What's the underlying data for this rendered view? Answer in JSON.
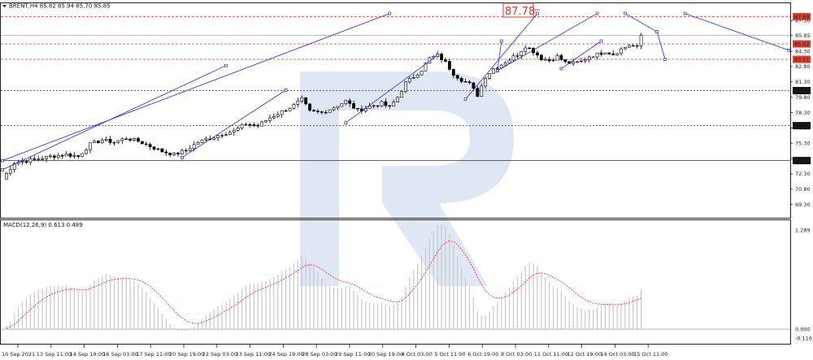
{
  "chart_data": {
    "type": "candlestick",
    "symbol_header": "BRENT,H4  85.82 85.94 85.70 85.85",
    "macd_header": "MACD(12,26,9) 0.613 0.489",
    "big_label": "87.78",
    "price_axis": {
      "range": [
        68.0,
        89.0
      ],
      "ticks": [
        "87.30",
        "85.85",
        "84.30",
        "82.80",
        "81.30",
        "79.80",
        "78.30",
        "76.80",
        "75.30",
        "73.80",
        "72.30",
        "70.80",
        "69.30"
      ],
      "highlighted": [
        {
          "text": "87.69",
          "kind": "red"
        },
        {
          "text": "85.02",
          "kind": "red"
        },
        {
          "text": "83.51",
          "kind": "red"
        },
        {
          "text": "80.45",
          "kind": "black"
        },
        {
          "text": "77.02",
          "kind": "black"
        },
        {
          "text": "73.60",
          "kind": "black"
        }
      ]
    },
    "macd_axis": {
      "ticks": [
        "1.289",
        "0.000",
        "-0.116"
      ]
    },
    "time_labels": [
      "10 Sep 2021",
      "13 Sep 11:00",
      "14 Sep 19:00",
      "16 Sep 03:00",
      "17 Sep 11:00",
      "20 Sep 19:00",
      "22 Sep 03:00",
      "23 Sep 11:00",
      "24 Sep 19:00",
      "28 Sep 03:00",
      "29 Sep 11:00",
      "30 Sep 19:00",
      "4 Oct 03:00",
      "5 Oct 11:00",
      "6 Oct 19:00",
      "8 Oct 03:00",
      "11 Oct 11:00",
      "12 Oct 19:00",
      "14 Oct 03:00",
      "15 Oct 11:00"
    ],
    "close_anchors": [
      [
        0,
        71.8
      ],
      [
        3,
        73.4
      ],
      [
        8,
        73.7
      ],
      [
        12,
        74.0
      ],
      [
        16,
        74.2
      ],
      [
        19,
        74.0
      ],
      [
        22,
        75.2
      ],
      [
        25,
        75.6
      ],
      [
        28,
        75.4
      ],
      [
        31,
        75.8
      ],
      [
        34,
        75.5
      ],
      [
        37,
        75.0
      ],
      [
        40,
        74.5
      ],
      [
        43,
        74.2
      ],
      [
        46,
        74.6
      ],
      [
        49,
        75.4
      ],
      [
        52,
        75.8
      ],
      [
        55,
        76.2
      ],
      [
        58,
        76.5
      ],
      [
        61,
        77.2
      ],
      [
        64,
        77.0
      ],
      [
        67,
        77.8
      ],
      [
        70,
        78.4
      ],
      [
        73,
        79.0
      ],
      [
        75,
        79.6
      ],
      [
        77,
        78.4
      ],
      [
        80,
        78.3
      ],
      [
        83,
        78.8
      ],
      [
        86,
        79.4
      ],
      [
        89,
        78.5
      ],
      [
        92,
        78.9
      ],
      [
        95,
        79.2
      ],
      [
        97,
        78.8
      ],
      [
        99,
        79.8
      ],
      [
        101,
        81.2
      ],
      [
        103,
        81.8
      ],
      [
        105,
        82.5
      ],
      [
        107,
        83.6
      ],
      [
        109,
        83.9
      ],
      [
        111,
        83.2
      ],
      [
        113,
        82.1
      ],
      [
        115,
        81.5
      ],
      [
        117,
        81.1
      ],
      [
        119,
        80.0
      ],
      [
        121,
        81.8
      ],
      [
        123,
        82.6
      ],
      [
        125,
        83.0
      ],
      [
        127,
        83.5
      ],
      [
        129,
        84.0
      ],
      [
        131,
        84.8
      ],
      [
        133,
        84.3
      ],
      [
        135,
        83.6
      ],
      [
        137,
        83.4
      ],
      [
        139,
        83.8
      ],
      [
        141,
        83.2
      ],
      [
        143,
        83.1
      ],
      [
        145,
        83.3
      ],
      [
        147,
        83.8
      ],
      [
        149,
        84.0
      ],
      [
        151,
        84.3
      ],
      [
        153,
        84.0
      ],
      [
        155,
        84.5
      ],
      [
        157,
        84.9
      ],
      [
        159,
        84.7
      ],
      [
        160,
        85.85
      ]
    ],
    "trend_lines": [
      [
        [
          0,
          72.7
        ],
        [
          56,
          82.9
        ]
      ],
      [
        [
          0,
          73.6
        ],
        [
          97,
          88.0
        ]
      ],
      [
        [
          45,
          73.9
        ],
        [
          71,
          80.5
        ]
      ],
      [
        [
          86,
          77.3
        ],
        [
          109,
          83.9
        ]
      ],
      [
        [
          116,
          79.6
        ],
        [
          134,
          88.0
        ]
      ],
      [
        [
          124,
          82.4
        ],
        [
          125,
          85.3
        ]
      ],
      [
        [
          124,
          82.4
        ],
        [
          149,
          88.0
        ]
      ],
      [
        [
          140,
          82.6
        ],
        [
          150,
          85.3
        ]
      ],
      [
        [
          156,
          88.0
        ],
        [
          164,
          86.2
        ]
      ],
      [
        [
          164,
          86.2
        ],
        [
          166,
          83.5
        ]
      ],
      [
        [
          171,
          88.0
        ],
        [
          197,
          84.4
        ]
      ]
    ],
    "n_bars": 160,
    "n_slots": 197,
    "colors": {
      "bull": "#ffffff",
      "bear": "#000000",
      "trend": "#2222ee",
      "red_level": "#e03a2c",
      "macd_signal": "#ee2222",
      "macd_hist": "#c8c8c8"
    }
  }
}
